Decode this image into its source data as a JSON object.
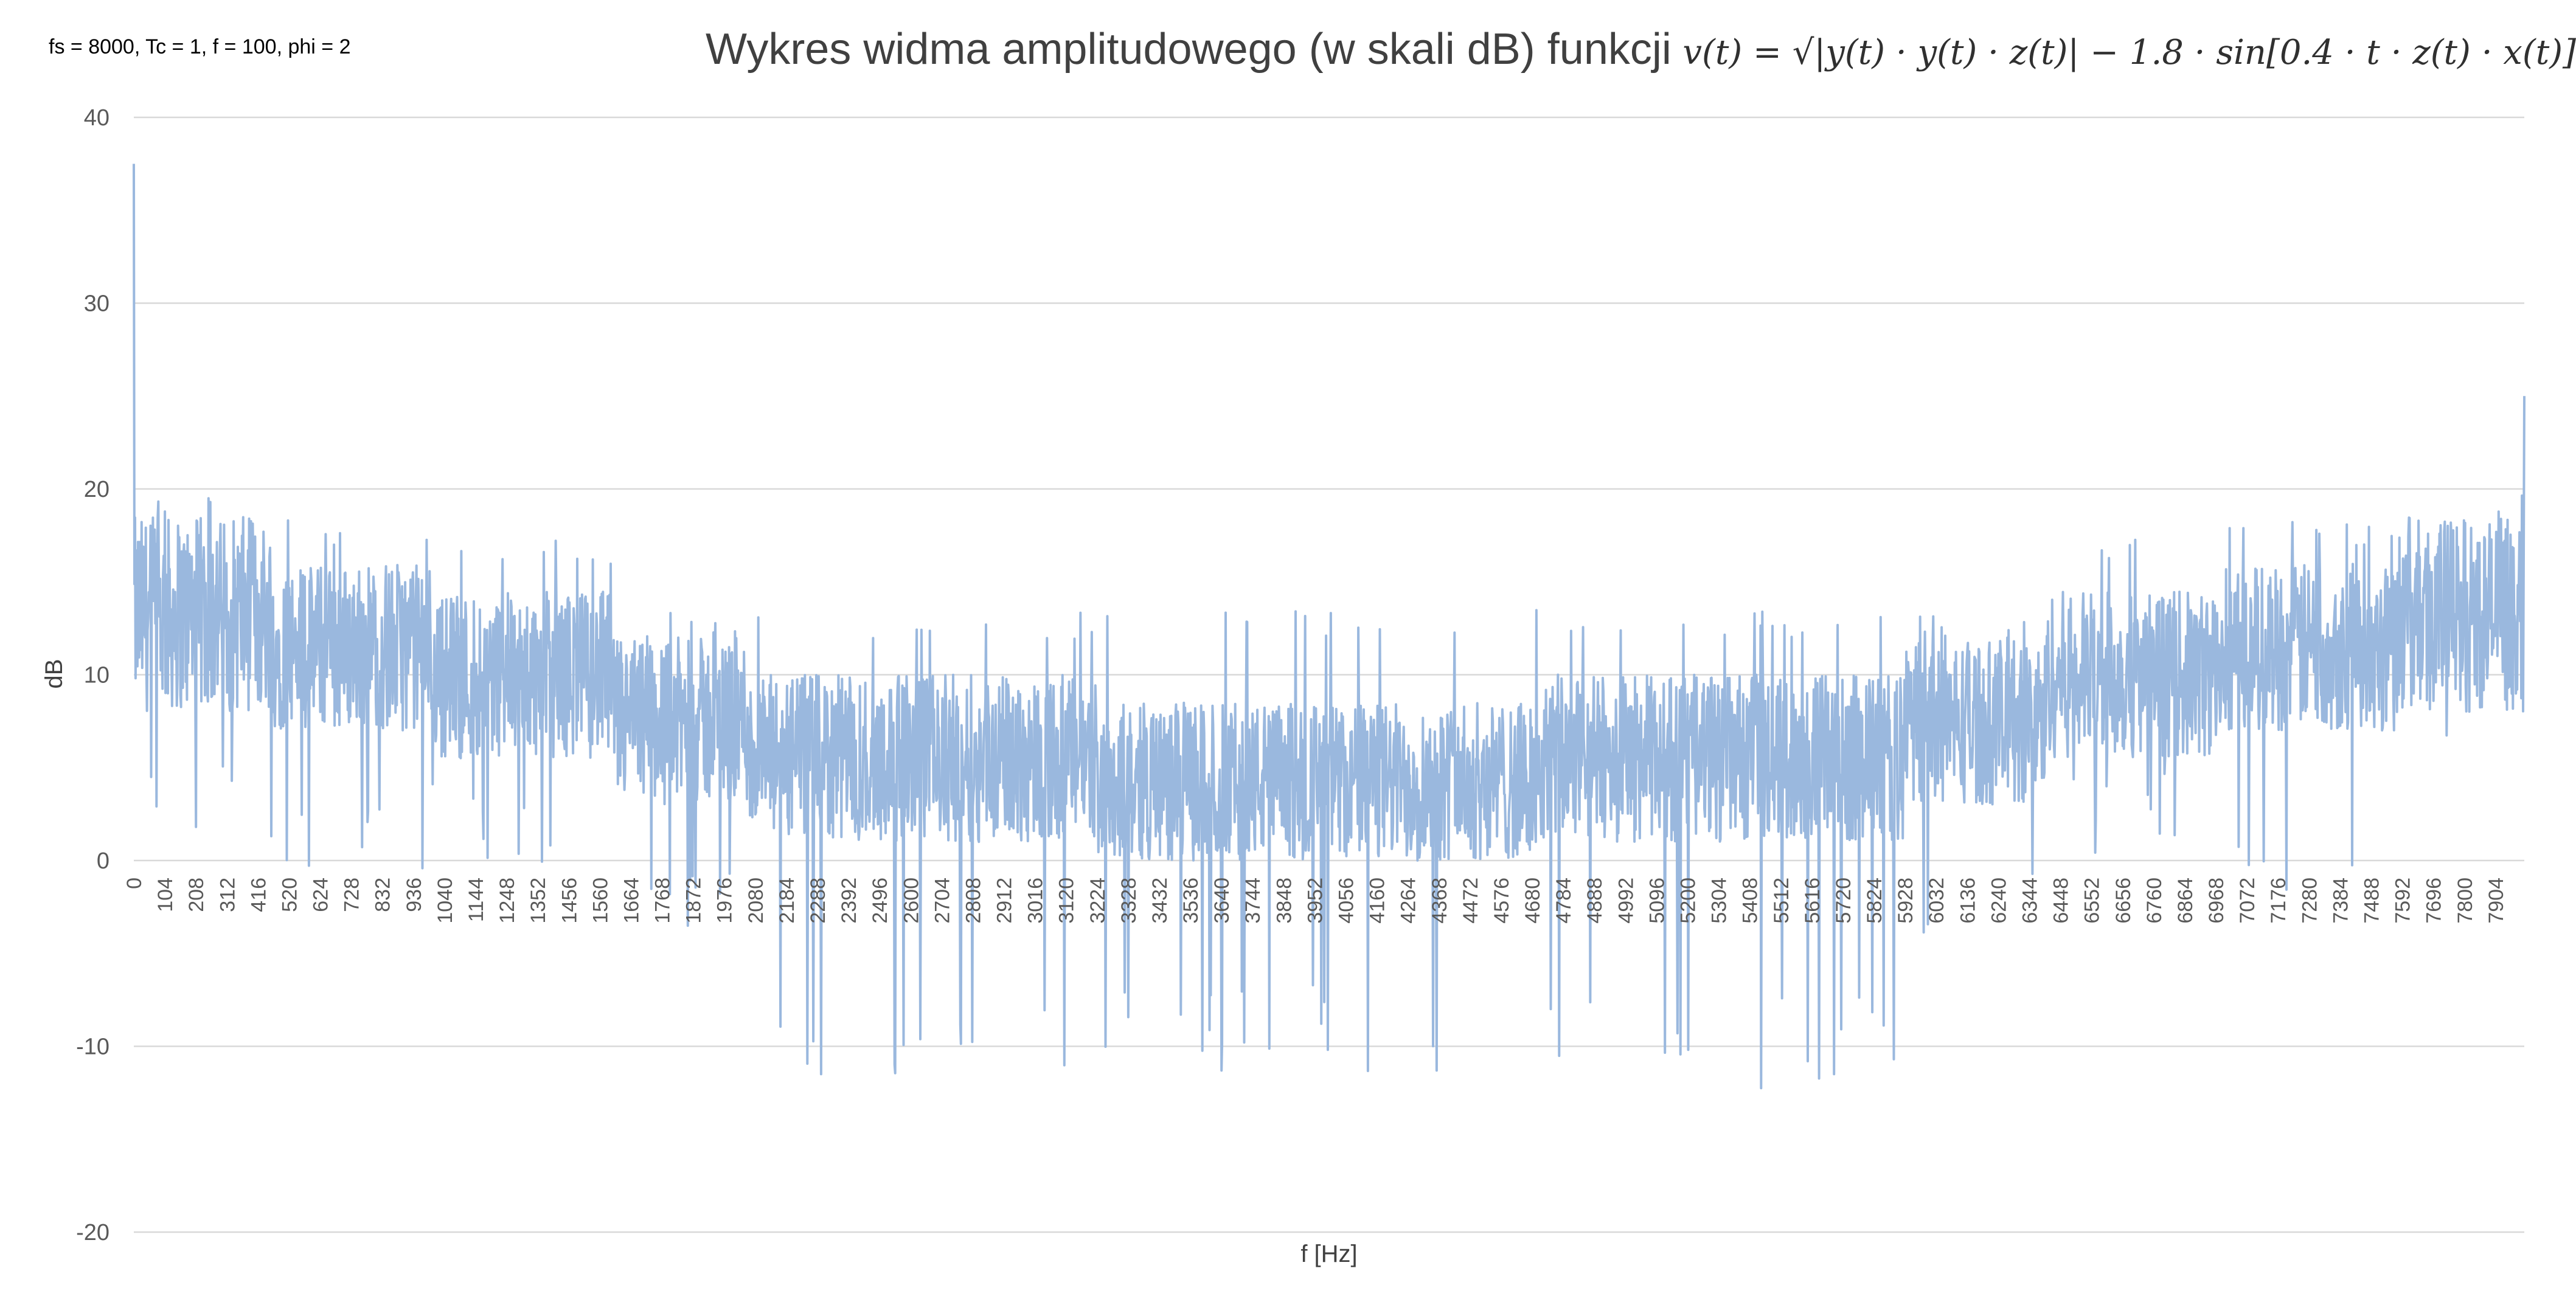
{
  "params_label": "fs = 8000, Tc = 1, f = 100, phi = 2",
  "title": {
    "text": "Wykres widma amplitudowego (w skali dB) funkcji",
    "formula": "v(t) = √|y(t) · y(t) · z(t)| − 1.8 · sin[0.4 · t · z(t) · x(t)]"
  },
  "chart_data": {
    "type": "line",
    "title": "Wykres widma amplitudowego (w skali dB) funkcji v(t) = √|y(t) · y(t) · z(t)| − 1.8 · sin[0.4 · t · z(t) · x(t)]",
    "xlabel": "f [Hz]",
    "ylabel": "dB",
    "ylim": [
      -20,
      40
    ],
    "yticks": [
      40,
      30,
      20,
      10,
      0,
      -10,
      -20
    ],
    "xlim": [
      0,
      8000
    ],
    "xticks": [
      0,
      104,
      208,
      312,
      416,
      520,
      624,
      728,
      832,
      936,
      1040,
      1144,
      1248,
      1352,
      1456,
      1560,
      1664,
      1768,
      1872,
      1976,
      2080,
      2184,
      2288,
      2392,
      2496,
      2600,
      2704,
      2808,
      2912,
      3016,
      3120,
      3224,
      3328,
      3432,
      3536,
      3640,
      3744,
      3848,
      3952,
      4056,
      4160,
      4264,
      4368,
      4472,
      4576,
      4680,
      4784,
      4888,
      4992,
      5096,
      5200,
      5304,
      5408,
      5512,
      5616,
      5720,
      5824,
      5928,
      6032,
      6136,
      6240,
      6344,
      6448,
      6552,
      6656,
      6760,
      6864,
      6968,
      7072,
      7176,
      7280,
      7384,
      7488,
      7592,
      7696,
      7800,
      7904
    ],
    "grid": true,
    "legend": "none",
    "series_color": "#9ab8de",
    "gridline_color": "#d9d9d9",
    "series": [
      {
        "envelope": [
          {
            "f_start": 0,
            "f_end": 0,
            "peak": 37.5,
            "floor": 12
          },
          {
            "f_start": 1,
            "f_end": 460,
            "upper": 18.5,
            "lower": 8,
            "max": 19.7,
            "min": 1.3
          },
          {
            "f_start": 460,
            "f_end": 1000,
            "upper": 16,
            "lower": 7,
            "max": 18.4,
            "min": -0.5
          },
          {
            "f_start": 1000,
            "f_end": 1600,
            "upper": 14.5,
            "lower": 5.5,
            "max": 17.3,
            "min": -0.3
          },
          {
            "f_start": 1600,
            "f_end": 2060,
            "upper": 12,
            "lower": 3,
            "max": 13.5,
            "min": -4
          },
          {
            "f_start": 2060,
            "f_end": 3220,
            "upper": 10,
            "lower": 1,
            "max": 13.4,
            "min": -12.3
          },
          {
            "f_start": 3220,
            "f_end": 4720,
            "upper": 8.5,
            "lower": 0,
            "max": 13.5,
            "min": -11.4
          },
          {
            "f_start": 4720,
            "f_end": 5920,
            "upper": 10,
            "lower": 1,
            "max": 13.5,
            "min": -12.3
          },
          {
            "f_start": 5920,
            "f_end": 6400,
            "upper": 12,
            "lower": 3,
            "max": 13.4,
            "min": -4
          },
          {
            "f_start": 6400,
            "f_end": 7000,
            "upper": 14.5,
            "lower": 5.5,
            "max": 17.3,
            "min": -0.3
          },
          {
            "f_start": 7000,
            "f_end": 7540,
            "upper": 16,
            "lower": 7,
            "max": 18.4,
            "min": -1.8
          },
          {
            "f_start": 7540,
            "f_end": 7999,
            "upper": 18.5,
            "lower": 8,
            "max": 19.7,
            "min": 6.2
          },
          {
            "f_start": 8000,
            "f_end": 8000,
            "peak": 25,
            "floor": 12
          }
        ],
        "notable_points": [
          {
            "f": 0,
            "dB": 37.5
          },
          {
            "f": 2300,
            "dB": -11.5
          },
          {
            "f": 2405,
            "dB": -12.3
          },
          {
            "f": 3640,
            "dB": -11.3
          },
          {
            "f": 4360,
            "dB": -11.3
          },
          {
            "f": 5555,
            "dB": -12.3
          },
          {
            "f": 5690,
            "dB": -11.5
          },
          {
            "f": 7999,
            "dB": 25
          }
        ]
      }
    ]
  }
}
